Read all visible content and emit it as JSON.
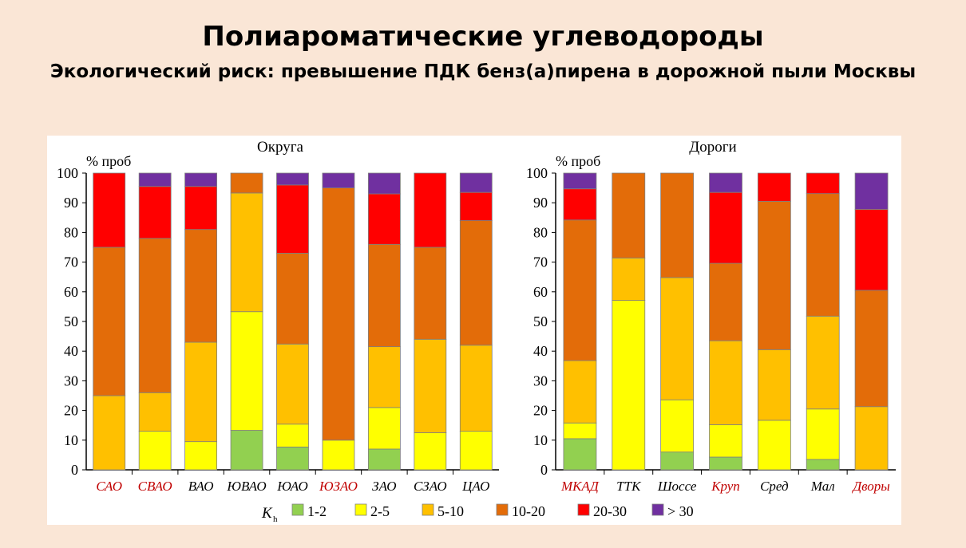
{
  "slide": {
    "title": "Полиароматические углеводороды",
    "subtitle": "Экологический риск: превышение ПДК бенз(а)пирена в дорожной пыли Москвы"
  },
  "legend": {
    "symbol": "K",
    "subscript": "h",
    "items": [
      {
        "label": "1-2",
        "color": "#92d050"
      },
      {
        "label": "2-5",
        "color": "#ffff00"
      },
      {
        "label": "5-10",
        "color": "#ffc000"
      },
      {
        "label": "10-20",
        "color": "#e36c09"
      },
      {
        "label": "20-30",
        "color": "#ff0000"
      },
      {
        "label": "> 30",
        "color": "#7030a0"
      }
    ],
    "position": "bottom"
  },
  "chart_data": [
    {
      "type": "bar",
      "stacked": true,
      "title": "Округа",
      "ylabel": "% проб",
      "ylim": [
        0,
        100
      ],
      "yticks": [
        0,
        10,
        20,
        30,
        40,
        50,
        60,
        70,
        80,
        90,
        100
      ],
      "categories": [
        "САО",
        "СВАО",
        "ВАО",
        "ЮВАО",
        "ЮАО",
        "ЮЗАО",
        "ЗАО",
        "СЗАО",
        "ЦАО"
      ],
      "category_colors": [
        "#c00000",
        "#c00000",
        "#000000",
        "#000000",
        "#000000",
        "#c00000",
        "#000000",
        "#000000",
        "#000000"
      ],
      "series": [
        {
          "name": "1-2",
          "color": "#92d050",
          "values": [
            0,
            0,
            0,
            13.3,
            7.7,
            0,
            7,
            0,
            0
          ]
        },
        {
          "name": "2-5",
          "color": "#ffff00",
          "values": [
            0,
            13,
            9.5,
            40,
            7.7,
            10,
            14,
            12.5,
            13
          ]
        },
        {
          "name": "5-10",
          "color": "#ffc000",
          "values": [
            25,
            13,
            33.5,
            40,
            27,
            0,
            20.5,
            31.5,
            29
          ]
        },
        {
          "name": "10-20",
          "color": "#e36c09",
          "values": [
            50,
            52,
            38,
            6.7,
            30.6,
            85,
            34.5,
            31,
            42
          ]
        },
        {
          "name": "20-30",
          "color": "#ff0000",
          "values": [
            25,
            17.5,
            14.5,
            0,
            23,
            0,
            17,
            25,
            9.5
          ]
        },
        {
          "name": "> 30",
          "color": "#7030a0",
          "values": [
            0,
            4.5,
            4.5,
            0,
            4,
            5,
            7,
            0,
            6.5
          ]
        }
      ]
    },
    {
      "type": "bar",
      "stacked": true,
      "title": "Дороги",
      "ylabel": "% проб",
      "ylim": [
        0,
        100
      ],
      "yticks": [
        0,
        10,
        20,
        30,
        40,
        50,
        60,
        70,
        80,
        90,
        100
      ],
      "categories": [
        "МКАД",
        "ТТК",
        "Шоссе",
        "Круп",
        "Сред",
        "Мал",
        "Дворы"
      ],
      "category_colors": [
        "#c00000",
        "#000000",
        "#000000",
        "#c00000",
        "#000000",
        "#000000",
        "#c00000"
      ],
      "series": [
        {
          "name": "1-2",
          "color": "#92d050",
          "values": [
            10.5,
            0,
            6,
            4.3,
            0,
            3.5,
            0
          ]
        },
        {
          "name": "2-5",
          "color": "#ffff00",
          "values": [
            5.3,
            57.1,
            17.6,
            10.9,
            16.7,
            17,
            0
          ]
        },
        {
          "name": "5-10",
          "color": "#ffc000",
          "values": [
            21,
            14.3,
            41.2,
            28.3,
            23.8,
            31.3,
            21.3
          ]
        },
        {
          "name": "10-20",
          "color": "#e36c09",
          "values": [
            47.4,
            28.6,
            35.2,
            26.1,
            50,
            41.3,
            39.2
          ]
        },
        {
          "name": "20-30",
          "color": "#ff0000",
          "values": [
            10.5,
            0,
            0,
            23.9,
            9.5,
            6.9,
            27.3
          ]
        },
        {
          "name": "> 30",
          "color": "#7030a0",
          "values": [
            5.3,
            0,
            0,
            6.5,
            0,
            0,
            12.2
          ]
        }
      ]
    }
  ]
}
